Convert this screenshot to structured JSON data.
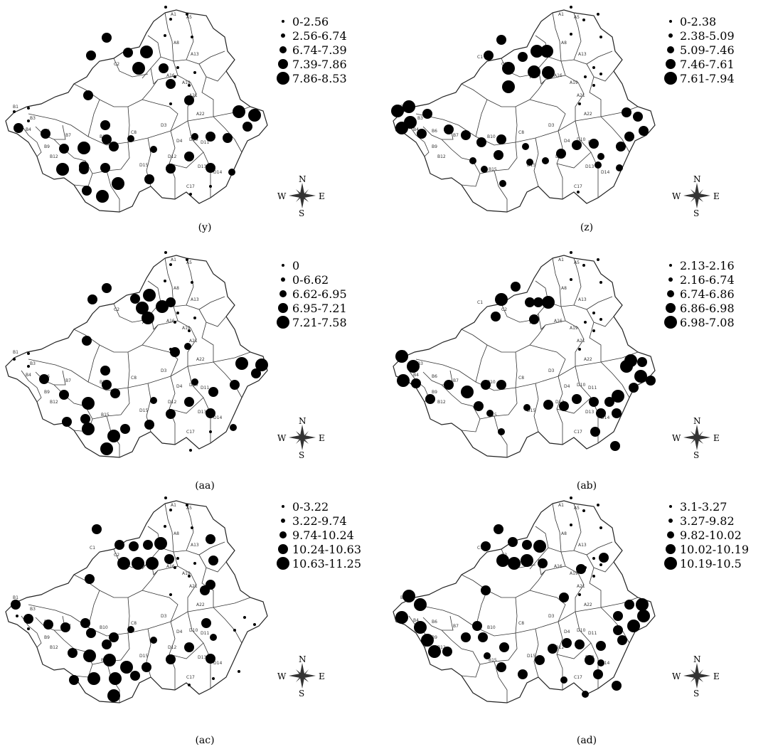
{
  "panels": [
    {
      "id": "y",
      "caption": "(y)",
      "legend": [
        "0-2.56",
        "2.56-6.74",
        "6.74-7.39",
        "7.39-7.86",
        "7.86-8.53"
      ]
    },
    {
      "id": "z",
      "caption": "(z)",
      "legend": [
        "0-2.38",
        "2.38-5.09",
        "5.09-7.46",
        "7.46-7.61",
        "7.61-7.94"
      ]
    },
    {
      "id": "aa",
      "caption": "(aa)",
      "legend": [
        "0",
        "0-6.62",
        "6.62-6.95",
        "6.95-7.21",
        "7.21-7.58"
      ]
    },
    {
      "id": "ab",
      "caption": "(ab)",
      "legend": [
        "2.13-2.16",
        "2.16-6.74",
        "6.74-6.86",
        "6.86-6.98",
        "6.98-7.08"
      ]
    },
    {
      "id": "ac",
      "caption": "(ac)",
      "legend": [
        "0-3.22",
        "3.22-9.74",
        "9.74-10.24",
        "10.24-10.63",
        "10.63-11.25"
      ]
    },
    {
      "id": "ad",
      "caption": "(ad)",
      "legend": [
        "3.1-3.27",
        "3.27-9.82",
        "9.82-10.02",
        "10.02-10.19",
        "10.19-10.5"
      ]
    }
  ],
  "compass": {
    "n": "N",
    "s": "S",
    "w": "W",
    "e": "E"
  },
  "district_labels": [
    "A1",
    "A5",
    "A8",
    "A13",
    "A16",
    "A19",
    "A21",
    "A22",
    "C2",
    "C1",
    "B1",
    "B3",
    "B4",
    "B6",
    "B7",
    "B9",
    "B12",
    "B10",
    "B15",
    "C8",
    "D3",
    "D4",
    "D10",
    "D11",
    "D12",
    "D13",
    "D14",
    "D15",
    "C17"
  ]
}
